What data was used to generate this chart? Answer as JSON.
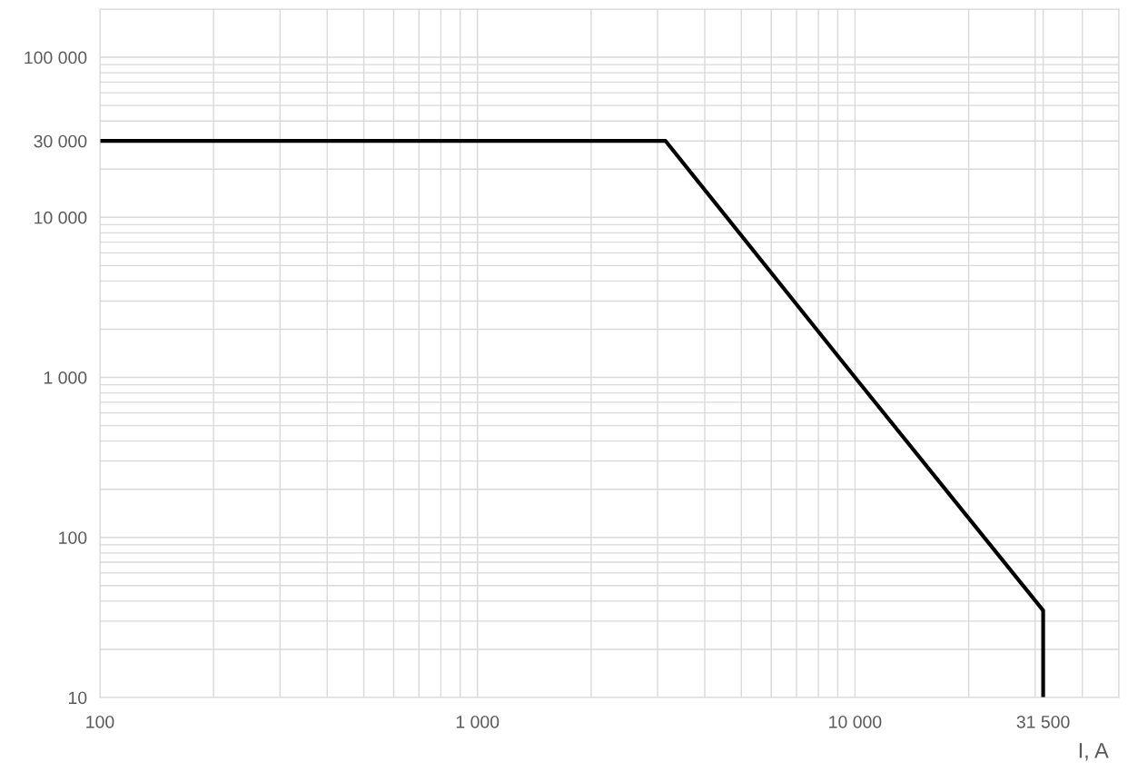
{
  "chart_data": {
    "type": "line",
    "xlabel": "I, A",
    "log": "xy",
    "grid": true,
    "x": [
      100,
      3150,
      10000,
      31500,
      31500
    ],
    "series": [
      {
        "color": "#000000",
        "values": [
          30000,
          30000,
          1000,
          35,
          10
        ]
      }
    ],
    "xlim": [
      100,
      50000
    ],
    "ylim": [
      10,
      200000
    ],
    "xticks": [
      100,
      {
        "value": 1000,
        "label": "1 000"
      },
      {
        "value": 10000,
        "label": "10 000"
      },
      {
        "value": 31500,
        "label": "31 500"
      }
    ],
    "yticks": [
      10,
      100,
      {
        "value": 1000,
        "label": "1 000"
      },
      {
        "value": 10000,
        "label": "10 000"
      },
      {
        "value": 30000,
        "label": "30 000"
      },
      {
        "value": 100000,
        "label": "100 000"
      }
    ],
    "marker": "none",
    "line_style": "solid"
  }
}
